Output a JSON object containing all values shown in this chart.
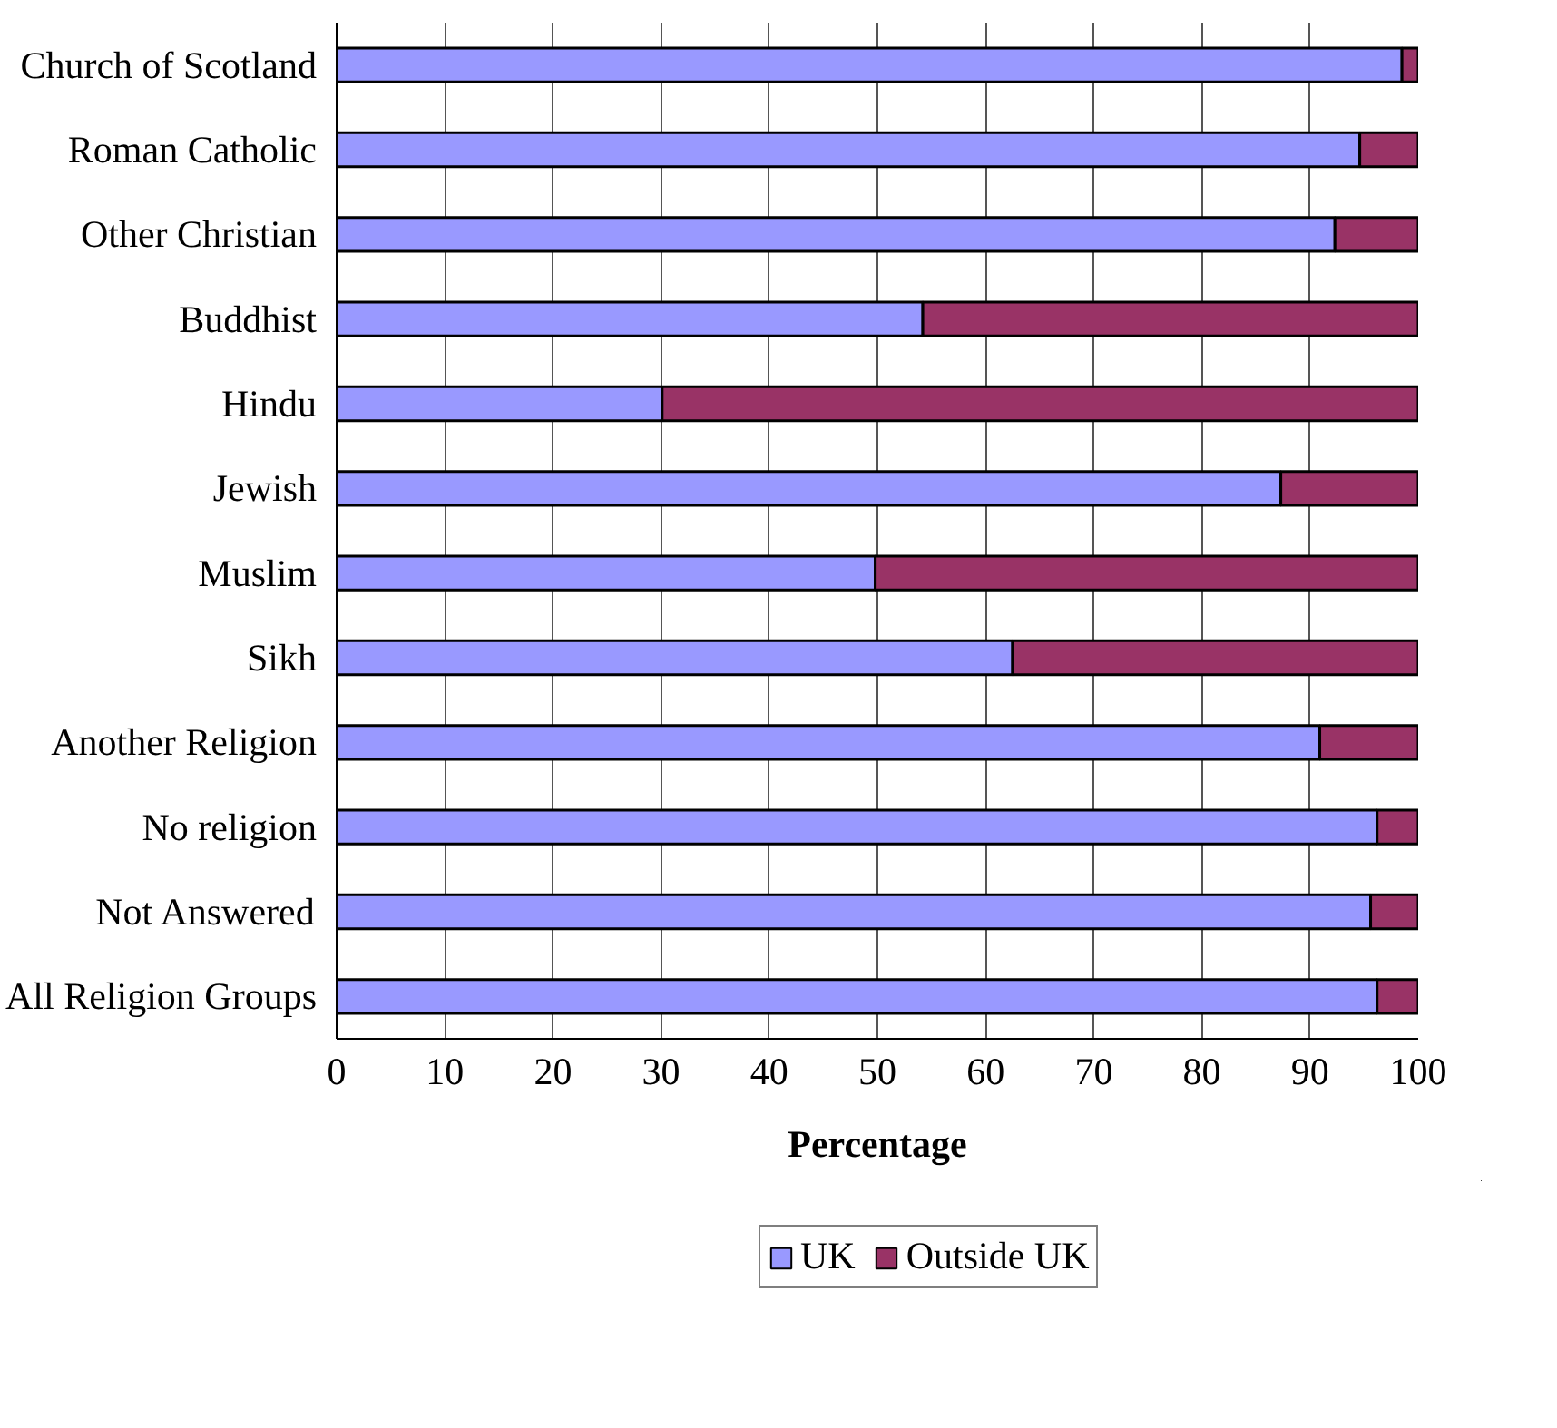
{
  "chart_data": {
    "type": "bar",
    "orientation": "horizontal",
    "stacked": true,
    "categories": [
      "Church of Scotland",
      "Roman Catholic",
      "Other Christian",
      "Buddhist",
      "Hindu",
      "Jewish",
      "Muslim",
      "Sikh",
      "Another Religion",
      "No religion",
      "Not Answered",
      "All Religion Groups"
    ],
    "series": [
      {
        "name": "UK",
        "color": "#9999ff",
        "values": [
          98.5,
          94.6,
          92.3,
          54.2,
          30.1,
          87.3,
          49.8,
          62.5,
          90.9,
          96.2,
          95.6,
          96.2
        ]
      },
      {
        "name": "Outside UK",
        "color": "#993366",
        "values": [
          1.5,
          5.4,
          7.7,
          45.8,
          69.9,
          12.7,
          50.2,
          37.5,
          9.1,
          3.8,
          4.4,
          3.8
        ]
      }
    ],
    "xlabel": "Percentage",
    "xlim": [
      0,
      100
    ],
    "xticks": [
      0,
      10,
      20,
      30,
      40,
      50,
      60,
      70,
      80,
      90,
      100
    ],
    "grid": "x",
    "legend": "bottom"
  }
}
